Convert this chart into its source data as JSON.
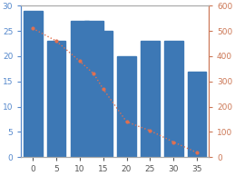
{
  "bar_x": [
    0,
    5,
    10,
    13,
    15,
    20,
    25,
    30,
    35
  ],
  "bar_heights": [
    29,
    23,
    27,
    27,
    25,
    20,
    23,
    23,
    17
  ],
  "bar_width": 4.0,
  "bar_color": "#3d78b5",
  "bar_edgecolor": "#3d78b5",
  "line_x": [
    0,
    5,
    10,
    13,
    15,
    20,
    25,
    30,
    35
  ],
  "line_y": [
    510,
    460,
    380,
    330,
    270,
    140,
    105,
    60,
    18
  ],
  "line_color": "#e07050",
  "line_style": ":",
  "line_marker": "o",
  "line_markersize": 2.0,
  "line_linewidth": 1.0,
  "xlim": [
    -2.5,
    37.5
  ],
  "ylim_left": [
    0,
    30
  ],
  "ylim_right": [
    0,
    600
  ],
  "yticks_left": [
    0,
    5,
    10,
    15,
    20,
    25,
    30
  ],
  "yticks_right": [
    0,
    100,
    200,
    300,
    400,
    500,
    600
  ],
  "xticks": [
    0,
    5,
    10,
    15,
    20,
    25,
    30,
    35
  ],
  "left_tick_color": "#5588cc",
  "right_tick_color": "#cc7755",
  "background_color": "#ffffff",
  "figsize": [
    2.59,
    1.94
  ],
  "dpi": 100
}
